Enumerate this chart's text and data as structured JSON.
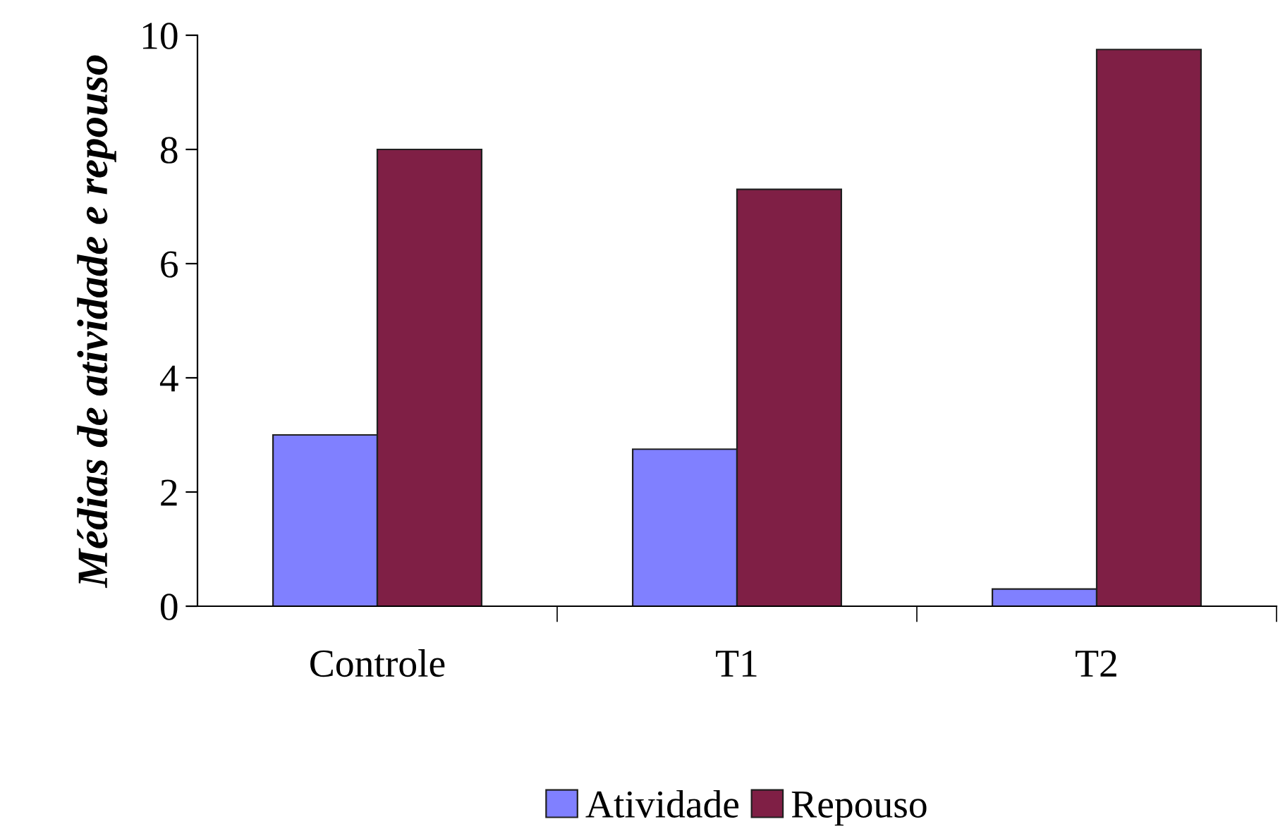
{
  "chart_data": {
    "type": "bar",
    "ylabel": "Médias de atividade e repouso",
    "categories": [
      "Controle",
      "T1",
      "T2"
    ],
    "series": [
      {
        "name": "Atividade",
        "color": "#8080ff",
        "values": [
          3.0,
          2.75,
          0.3
        ]
      },
      {
        "name": "Repouso",
        "color": "#7f1f45",
        "values": [
          8.0,
          7.3,
          9.75
        ]
      }
    ],
    "ylim": [
      0,
      10
    ],
    "yticks": [
      0,
      2,
      4,
      6,
      8,
      10
    ],
    "grid": false,
    "legend": "bottom"
  }
}
